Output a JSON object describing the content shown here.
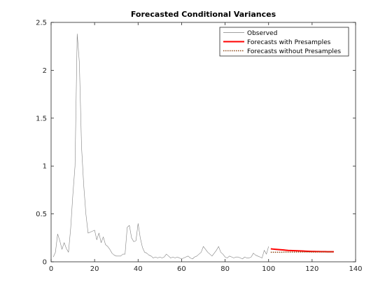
{
  "chart_data": {
    "type": "line",
    "title": "Forecasted Conditional Variances",
    "xlabel": "",
    "ylabel": "",
    "xlim": [
      0,
      140
    ],
    "ylim": [
      0,
      2.5
    ],
    "xticks": [
      0,
      20,
      40,
      60,
      80,
      100,
      120,
      140
    ],
    "yticks": [
      0,
      0.5,
      1,
      1.5,
      2,
      2.5
    ],
    "xtick_labels": [
      "0",
      "20",
      "40",
      "60",
      "80",
      "100",
      "120",
      "140"
    ],
    "ytick_labels": [
      "0",
      "0.5",
      "1",
      "1.5",
      "2",
      "2.5"
    ],
    "grid": false,
    "legend_position": "top-right",
    "series": [
      {
        "name": "Observed",
        "color": "#808080",
        "style": "solid",
        "x": [
          1,
          2,
          3,
          4,
          5,
          6,
          7,
          8,
          9,
          10,
          11,
          12,
          13,
          14,
          15,
          16,
          17,
          18,
          19,
          20,
          21,
          22,
          23,
          24,
          25,
          26,
          27,
          28,
          29,
          30,
          31,
          32,
          33,
          34,
          35,
          36,
          37,
          38,
          39,
          40,
          41,
          42,
          43,
          44,
          45,
          46,
          47,
          48,
          49,
          50,
          51,
          52,
          53,
          54,
          55,
          56,
          57,
          58,
          59,
          60,
          61,
          62,
          63,
          64,
          65,
          66,
          67,
          68,
          69,
          70,
          71,
          72,
          73,
          74,
          75,
          76,
          77,
          78,
          79,
          80,
          81,
          82,
          83,
          84,
          85,
          86,
          87,
          88,
          89,
          90,
          91,
          92,
          93,
          94,
          95,
          96,
          97,
          98,
          99,
          100
        ],
        "y": [
          0.05,
          0.1,
          0.29,
          0.22,
          0.13,
          0.2,
          0.14,
          0.1,
          0.35,
          0.7,
          1.0,
          2.38,
          2.08,
          1.2,
          0.8,
          0.5,
          0.3,
          0.31,
          0.32,
          0.33,
          0.23,
          0.3,
          0.2,
          0.26,
          0.18,
          0.16,
          0.13,
          0.09,
          0.07,
          0.06,
          0.06,
          0.06,
          0.08,
          0.08,
          0.36,
          0.38,
          0.25,
          0.21,
          0.22,
          0.4,
          0.25,
          0.15,
          0.1,
          0.09,
          0.07,
          0.06,
          0.04,
          0.05,
          0.04,
          0.05,
          0.04,
          0.05,
          0.08,
          0.06,
          0.04,
          0.05,
          0.04,
          0.05,
          0.04,
          0.03,
          0.04,
          0.05,
          0.06,
          0.04,
          0.03,
          0.05,
          0.06,
          0.08,
          0.1,
          0.16,
          0.13,
          0.1,
          0.08,
          0.06,
          0.09,
          0.12,
          0.16,
          0.1,
          0.08,
          0.05,
          0.04,
          0.06,
          0.05,
          0.04,
          0.05,
          0.05,
          0.04,
          0.03,
          0.05,
          0.04,
          0.04,
          0.05,
          0.09,
          0.07,
          0.06,
          0.05,
          0.04,
          0.12,
          0.08,
          0.16
        ]
      },
      {
        "name": "Forecasts with Presamples",
        "color": "#ff0000",
        "style": "solid",
        "x": [
          101,
          102,
          103,
          104,
          105,
          106,
          107,
          108,
          109,
          110,
          111,
          112,
          113,
          114,
          115,
          116,
          117,
          118,
          119,
          120,
          121,
          122,
          123,
          124,
          125,
          126,
          127,
          128,
          129,
          130
        ],
        "y": [
          0.135,
          0.133,
          0.131,
          0.129,
          0.127,
          0.125,
          0.123,
          0.121,
          0.119,
          0.118,
          0.117,
          0.116,
          0.115,
          0.114,
          0.113,
          0.112,
          0.111,
          0.11,
          0.109,
          0.108,
          0.108,
          0.107,
          0.107,
          0.106,
          0.106,
          0.106,
          0.105,
          0.105,
          0.105,
          0.105
        ]
      },
      {
        "name": "Forecasts without Presamples",
        "color": "#8b4513",
        "style": "dotted",
        "x": [
          101,
          102,
          103,
          104,
          105,
          106,
          107,
          108,
          109,
          110,
          111,
          112,
          113,
          114,
          115,
          116,
          117,
          118,
          119,
          120,
          121,
          122,
          123,
          124,
          125,
          126,
          127,
          128,
          129,
          130
        ],
        "y": [
          0.1,
          0.1,
          0.1,
          0.1,
          0.1,
          0.1,
          0.101,
          0.101,
          0.101,
          0.101,
          0.101,
          0.101,
          0.102,
          0.102,
          0.102,
          0.102,
          0.102,
          0.102,
          0.102,
          0.102,
          0.102,
          0.103,
          0.103,
          0.103,
          0.103,
          0.103,
          0.103,
          0.103,
          0.103,
          0.103
        ]
      }
    ]
  }
}
